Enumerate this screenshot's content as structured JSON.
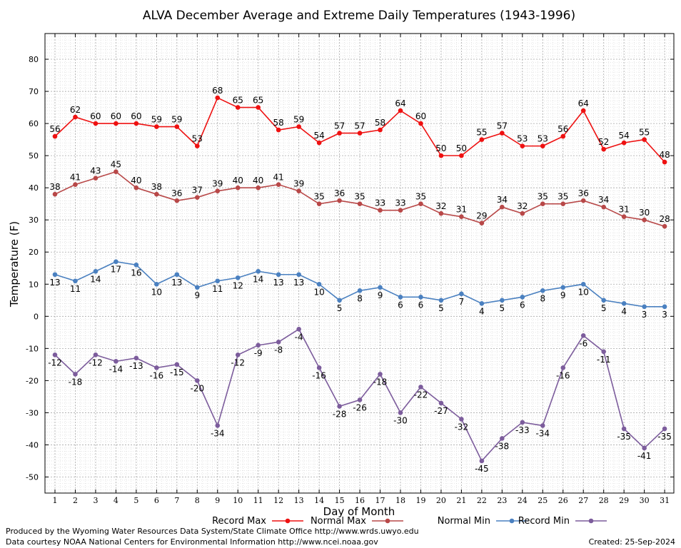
{
  "chart_data": {
    "type": "line",
    "title": "ALVA December Average and Extreme Daily Temperatures (1943-1996)",
    "xlabel": "Day of Month",
    "ylabel": "Temperature (F)",
    "x": [
      1,
      2,
      3,
      4,
      5,
      6,
      7,
      8,
      9,
      10,
      11,
      12,
      13,
      14,
      15,
      16,
      17,
      18,
      19,
      20,
      21,
      22,
      23,
      24,
      25,
      26,
      27,
      28,
      29,
      30,
      31
    ],
    "x_tick_labels": [
      "1",
      "2",
      "3",
      "4",
      "5",
      "6",
      "7",
      "8",
      "9",
      "10",
      "11",
      "12",
      "13",
      "14",
      "15",
      "16",
      "17",
      "18",
      "19",
      "20",
      "21",
      "22",
      "23",
      "24",
      "25",
      "26",
      "27",
      "28",
      "29",
      "30",
      "31"
    ],
    "ylim": [
      -55,
      88
    ],
    "y_ticks": [
      -50,
      -40,
      -30,
      -20,
      -10,
      0,
      10,
      20,
      30,
      40,
      50,
      60,
      70,
      80
    ],
    "grid": true,
    "legend_position": "bottom",
    "series": [
      {
        "name": "Record Max",
        "color": "#ee1111",
        "label_pos": "above",
        "values": [
          56,
          62,
          60,
          60,
          60,
          59,
          59,
          53,
          68,
          65,
          65,
          58,
          59,
          54,
          57,
          57,
          58,
          64,
          60,
          50,
          50,
          55,
          57,
          53,
          53,
          56,
          64,
          52,
          54,
          55,
          48
        ]
      },
      {
        "name": "Normal Max",
        "color": "#b84848",
        "label_pos": "above",
        "values": [
          38,
          41,
          43,
          45,
          40,
          38,
          36,
          37,
          39,
          40,
          40,
          41,
          39,
          35,
          36,
          35,
          33,
          33,
          35,
          32,
          31,
          29,
          34,
          32,
          35,
          35,
          36,
          34,
          31,
          30,
          28
        ]
      },
      {
        "name": "Normal Min",
        "color": "#4a80c0",
        "label_pos": "below",
        "values": [
          13,
          11,
          14,
          17,
          16,
          10,
          13,
          9,
          11,
          12,
          14,
          13,
          13,
          10,
          5,
          8,
          9,
          6,
          6,
          5,
          7,
          4,
          5,
          6,
          8,
          9,
          10,
          5,
          4,
          3,
          3
        ]
      },
      {
        "name": "Record Min",
        "color": "#7c5c9c",
        "label_pos": "below",
        "values": [
          -12,
          -18,
          -12,
          -14,
          -13,
          -16,
          -15,
          -20,
          -34,
          -12,
          -9,
          -8,
          -4,
          -16,
          -28,
          -26,
          -18,
          -30,
          -22,
          -27,
          -32,
          -45,
          -38,
          -33,
          -34,
          -16,
          -6,
          -11,
          -35,
          -41,
          -35
        ]
      }
    ]
  },
  "footer": {
    "credit1": "Produced by the Wyoming Water Resources Data System/State Climate Office http://www.wrds.uwyo.edu",
    "credit2": "Data courtesy NOAA National Centers for Environmental Information http://www.ncei.noaa.gov",
    "created": "Created:  25-Sep-2024"
  }
}
